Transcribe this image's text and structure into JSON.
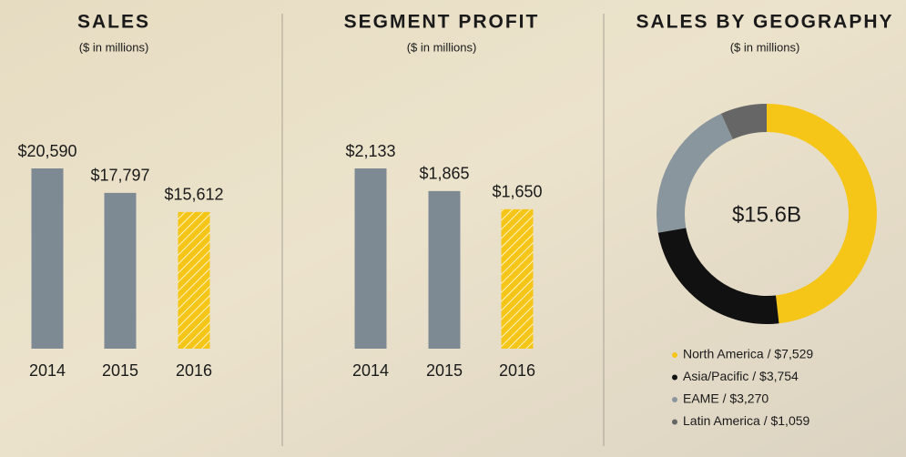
{
  "chart_data": [
    {
      "type": "bar",
      "title": "SALES",
      "subtitle": "($ in millions)",
      "categories": [
        "2014",
        "2015",
        "2016"
      ],
      "values": [
        20590,
        17797,
        15612
      ],
      "value_labels": [
        "$20,590",
        "$17,797",
        "$15,612"
      ],
      "colors": [
        "#7d8a93",
        "#7d8a93",
        "#f5c518"
      ],
      "hatched": [
        false,
        false,
        true
      ]
    },
    {
      "type": "bar",
      "title": "SEGMENT PROFIT",
      "subtitle": "($ in millions)",
      "categories": [
        "2014",
        "2015",
        "2016"
      ],
      "values": [
        2133,
        1865,
        1650
      ],
      "value_labels": [
        "$2,133",
        "$1,865",
        "$1,650"
      ],
      "colors": [
        "#7d8a93",
        "#7d8a93",
        "#f5c518"
      ],
      "hatched": [
        false,
        false,
        true
      ]
    },
    {
      "type": "donut",
      "title": "SALES BY GEOGRAPHY",
      "subtitle": "($ in millions)",
      "center_label": "$15.6B",
      "categories": [
        "North America / $7,529",
        "Asia/Pacific / $3,754",
        "EAME / $3,270",
        "Latin America / $1,059"
      ],
      "values": [
        7529,
        3754,
        3270,
        1059
      ],
      "colors": [
        "#f5c518",
        "#111111",
        "#8a969e",
        "#666666"
      ]
    }
  ]
}
